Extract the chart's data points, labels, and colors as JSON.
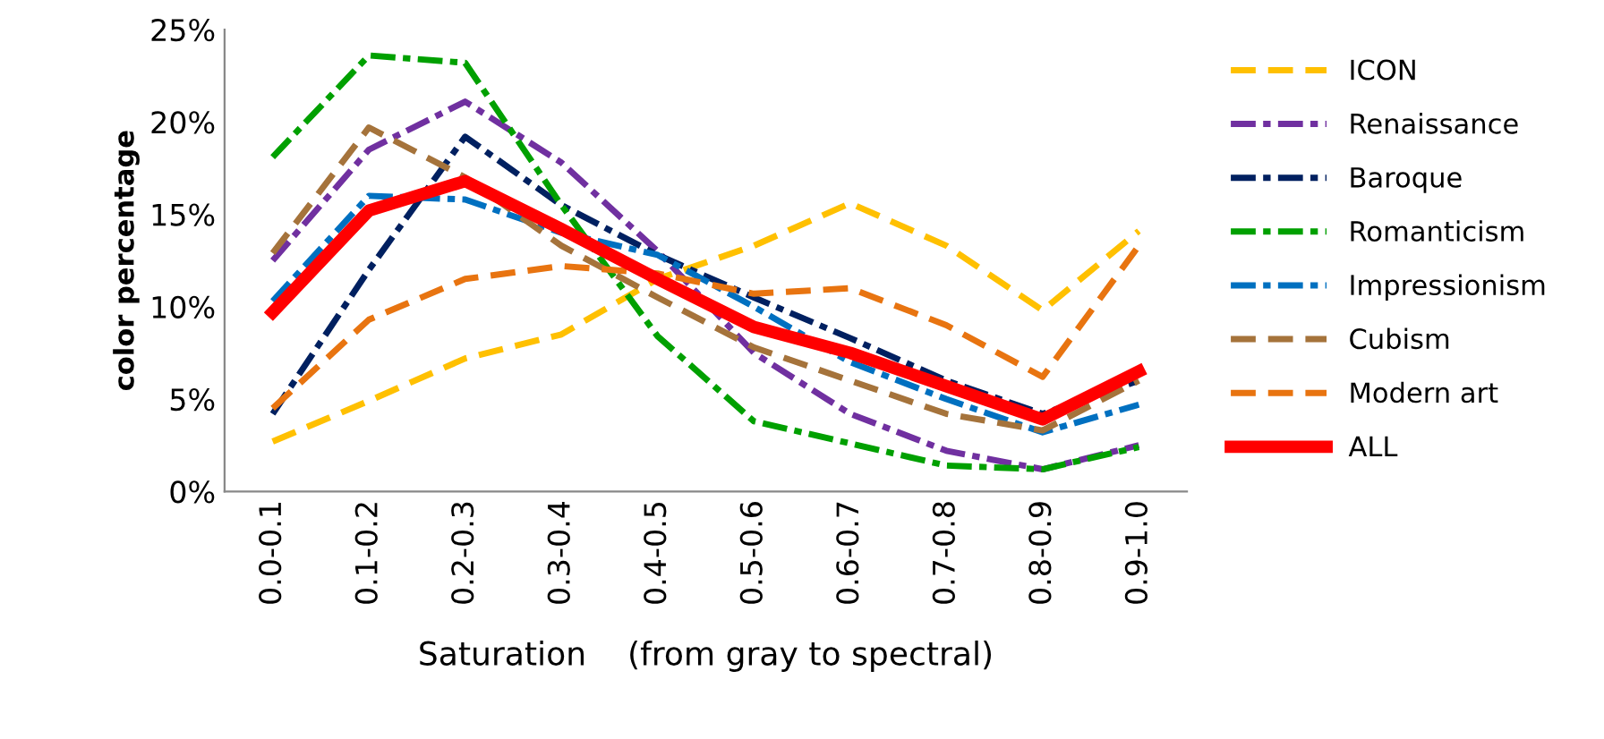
{
  "chart_data": {
    "type": "line",
    "xlabel": "Saturation    (from gray to spectral)",
    "ylabel": "color percentage",
    "categories": [
      "0.0-0.1",
      "0.1-0.2",
      "0.2-0.3",
      "0.3-0.4",
      "0.4-0.5",
      "0.5-0.6",
      "0.6-0.7",
      "0.7-0.8",
      "0.8-0.9",
      "0.9-1.0"
    ],
    "ylim": [
      0,
      25
    ],
    "yticks": [
      {
        "value": 0,
        "label": "0%"
      },
      {
        "value": 5,
        "label": "5%"
      },
      {
        "value": 10,
        "label": "10%"
      },
      {
        "value": 15,
        "label": "15%"
      },
      {
        "value": 20,
        "label": "20%"
      },
      {
        "value": 25,
        "label": "25%"
      }
    ],
    "grid": false,
    "legend": "right",
    "marker": "none",
    "series": [
      {
        "name": "ICON",
        "color": "#ffc000",
        "line_style": "dashed",
        "values": [
          2.7,
          4.9,
          7.2,
          8.5,
          11.5,
          13.3,
          15.6,
          13.3,
          9.8,
          14.1
        ]
      },
      {
        "name": "Renaissance",
        "color": "#7030a0",
        "line_style": "dashdot",
        "values": [
          12.5,
          18.5,
          21.1,
          17.8,
          13.0,
          7.5,
          4.2,
          2.2,
          1.2,
          2.5
        ]
      },
      {
        "name": "Baroque",
        "color": "#002060",
        "line_style": "dashdot",
        "values": [
          4.2,
          12.0,
          19.2,
          15.5,
          12.8,
          10.5,
          8.3,
          6.0,
          4.2,
          6.0
        ]
      },
      {
        "name": "Romanticism",
        "color": "#00a000",
        "line_style": "dashdot",
        "values": [
          18.1,
          23.6,
          23.2,
          15.5,
          8.4,
          3.8,
          2.6,
          1.4,
          1.2,
          2.4
        ]
      },
      {
        "name": "Impressionism",
        "color": "#0070c0",
        "line_style": "dashdot",
        "values": [
          10.3,
          16.0,
          15.8,
          14.0,
          12.8,
          10.0,
          7.0,
          5.0,
          3.2,
          4.7
        ]
      },
      {
        "name": "Cubism",
        "color": "#a5733b",
        "line_style": "dashed",
        "values": [
          12.9,
          19.7,
          17.0,
          13.3,
          10.5,
          7.8,
          6.0,
          4.2,
          3.3,
          6.0
        ]
      },
      {
        "name": "Modern art",
        "color": "#e87410",
        "line_style": "dashed",
        "values": [
          4.5,
          9.3,
          11.5,
          12.2,
          11.8,
          10.7,
          11.0,
          9.0,
          6.2,
          13.3
        ]
      },
      {
        "name": "ALL",
        "color": "#ff0000",
        "line_style": "solid",
        "values": [
          9.7,
          15.2,
          16.8,
          14.2,
          11.5,
          8.9,
          7.5,
          5.7,
          3.9,
          6.5
        ]
      }
    ]
  }
}
